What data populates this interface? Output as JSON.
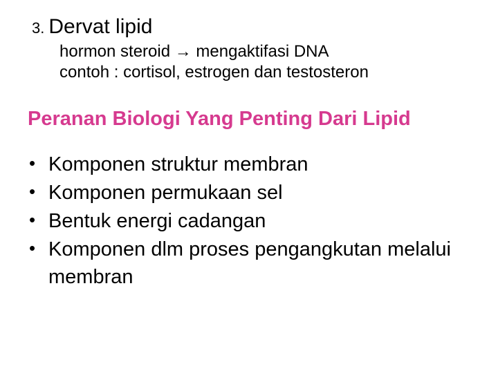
{
  "item3": {
    "number": "3.",
    "title": "Dervat lipid",
    "line1": "hormon steroid → mengaktifasi DNA",
    "line2": "contoh : cortisol, estrogen dan testosteron"
  },
  "heading": "Peranan Biologi Yang Penting Dari Lipid",
  "bullets": [
    "Komponen struktur membran",
    "Komponen permukaan sel",
    "Bentuk energi cadangan",
    "Komponen dlm proses pengangkutan melalui membran"
  ],
  "colors": {
    "heading": "#d63a8f",
    "body_text": "#000000",
    "background": "#ffffff"
  },
  "typography": {
    "title_fontsize": 30,
    "sub_fontsize": 24,
    "heading_fontsize": 29,
    "bullet_fontsize": 29,
    "serif_family": "Comic Sans MS",
    "sans_family": "Arial"
  }
}
